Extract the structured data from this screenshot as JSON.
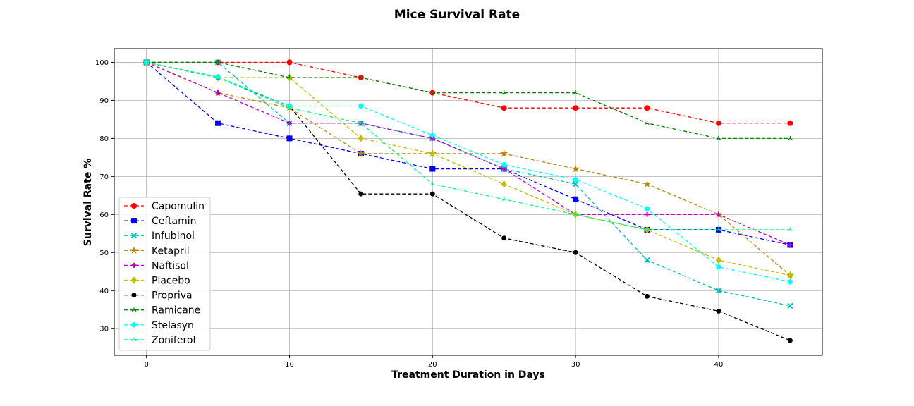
{
  "chart_data": {
    "type": "line",
    "title": "Mice Survival Rate",
    "xlabel": "Treatment Duration in Days",
    "ylabel": "Survival Rate %",
    "xlim": [
      -2.25,
      47.25
    ],
    "ylim": [
      23,
      103.6
    ],
    "xticks": [
      0,
      10,
      20,
      30,
      40
    ],
    "yticks": [
      30,
      40,
      50,
      60,
      70,
      80,
      90,
      100
    ],
    "grid": true,
    "legend_position": "lower-left",
    "x": [
      0,
      5,
      10,
      15,
      20,
      25,
      30,
      35,
      40,
      45
    ],
    "series": [
      {
        "name": "Capomulin",
        "color": "#ff0000",
        "marker": "circle",
        "values": [
          100,
          100,
          100,
          96,
          92,
          88,
          88,
          88,
          84,
          84
        ]
      },
      {
        "name": "Ceftamin",
        "color": "#0000ff",
        "marker": "square",
        "values": [
          100,
          84,
          80,
          76,
          72,
          72,
          64,
          56,
          56,
          52
        ]
      },
      {
        "name": "Infubinol",
        "color": "#00bfbf",
        "marker": "x",
        "values": [
          100,
          100,
          84,
          84,
          80,
          72,
          68,
          48,
          40,
          36
        ]
      },
      {
        "name": "Ketapril",
        "color": "#b8860b",
        "marker": "star",
        "values": [
          100,
          92,
          88,
          76,
          76,
          76,
          72,
          68,
          60,
          44
        ]
      },
      {
        "name": "Naftisol",
        "color": "#bf00bf",
        "marker": "plus",
        "values": [
          100,
          92,
          84,
          84,
          80,
          72,
          60,
          60,
          60,
          52
        ]
      },
      {
        "name": "Placebo",
        "color": "#bfbf00",
        "marker": "diamond",
        "values": [
          100,
          96,
          96,
          80,
          76,
          68,
          60,
          56,
          48,
          44
        ]
      },
      {
        "name": "Propriva",
        "color": "#000000",
        "marker": "dot",
        "values": [
          100,
          96,
          88.5,
          65.4,
          65.4,
          53.8,
          50,
          38.5,
          34.6,
          26.9
        ]
      },
      {
        "name": "Ramicane",
        "color": "#008000",
        "marker": "tri",
        "values": [
          100,
          100,
          96,
          96,
          92,
          92,
          92,
          84,
          80,
          80
        ]
      },
      {
        "name": "Stelasyn",
        "color": "#00ffff",
        "marker": "hexagon",
        "values": [
          100,
          96.2,
          88.5,
          88.5,
          80.8,
          73.1,
          69.2,
          61.5,
          46.2,
          42.3
        ]
      },
      {
        "name": "Zoniferol",
        "color": "#00ff7f",
        "marker": "tri",
        "values": [
          100,
          96,
          88,
          84,
          68,
          64,
          60,
          56,
          56,
          56
        ]
      }
    ]
  }
}
